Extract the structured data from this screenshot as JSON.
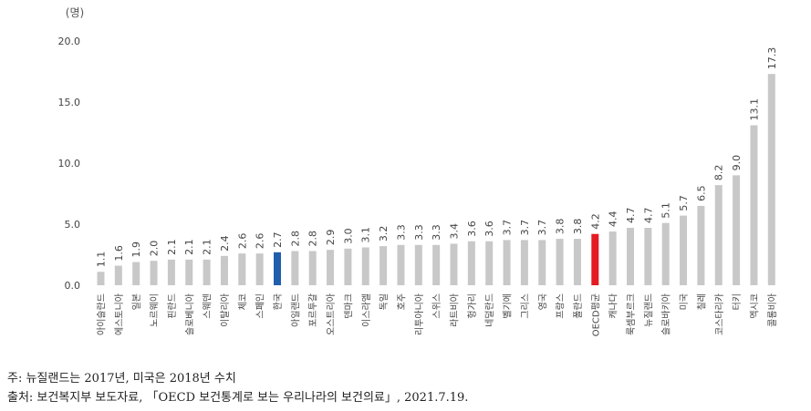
{
  "chart_data": {
    "type": "bar",
    "unit_label": "(명)",
    "ylim": [
      0,
      20
    ],
    "yticks": [
      "0.0",
      "5.0",
      "10.0",
      "15.0",
      "20.0"
    ],
    "grid": false,
    "categories": [
      "아이슬란드",
      "에스토니아",
      "일본",
      "노르웨이",
      "핀란드",
      "슬로베니아",
      "스웨덴",
      "이탈리아",
      "체코",
      "스페인",
      "한국",
      "아일랜드",
      "포르투갈",
      "오스트리아",
      "덴마크",
      "이스라엘",
      "독일",
      "호주",
      "리투아니아",
      "스위스",
      "라트비아",
      "헝가리",
      "네덜란드",
      "벨기에",
      "그리스",
      "영국",
      "프랑스",
      "폴란드",
      "OECD평균",
      "캐나다",
      "룩셈부르크",
      "뉴질랜드",
      "슬로바키아",
      "미국",
      "칠레",
      "코스타리카",
      "터키",
      "멕시코",
      "콜롬비아"
    ],
    "values": [
      1.1,
      1.6,
      1.9,
      2.0,
      2.1,
      2.1,
      2.1,
      2.4,
      2.6,
      2.6,
      2.7,
      2.8,
      2.8,
      2.9,
      3.0,
      3.1,
      3.2,
      3.3,
      3.3,
      3.3,
      3.4,
      3.6,
      3.6,
      3.7,
      3.7,
      3.7,
      3.8,
      3.8,
      4.2,
      4.4,
      4.7,
      4.7,
      5.1,
      5.7,
      6.5,
      8.2,
      9.0,
      13.1,
      17.3
    ],
    "value_labels": [
      "1.1",
      "1.6",
      "1.9",
      "2.0",
      "2.1",
      "2.1",
      "2.1",
      "2.4",
      "2.6",
      "2.6",
      "2.7",
      "2.8",
      "2.8",
      "2.9",
      "3.0",
      "3.1",
      "3.2",
      "3.3",
      "3.3",
      "3.3",
      "3.4",
      "3.6",
      "3.6",
      "3.7",
      "3.7",
      "3.7",
      "3.8",
      "3.8",
      "4.2",
      "4.4",
      "4.7",
      "4.7",
      "5.1",
      "5.7",
      "6.5",
      "8.2",
      "9.0",
      "13.1",
      "17.3"
    ],
    "colors": {
      "default": "#c8c8c8",
      "korea": "#1f5fae",
      "oecd": "#e31b23"
    },
    "highlight": {
      "한국": "korea",
      "OECD평균": "oecd"
    }
  },
  "notes": {
    "note1": "주: 뉴질랜드는 2017년, 미국은 2018년 수치",
    "note2": "출처: 보건복지부 보도자료, 「OECD 보건통계로 보는 우리나라의 보건의료」, 2021.7.19."
  }
}
